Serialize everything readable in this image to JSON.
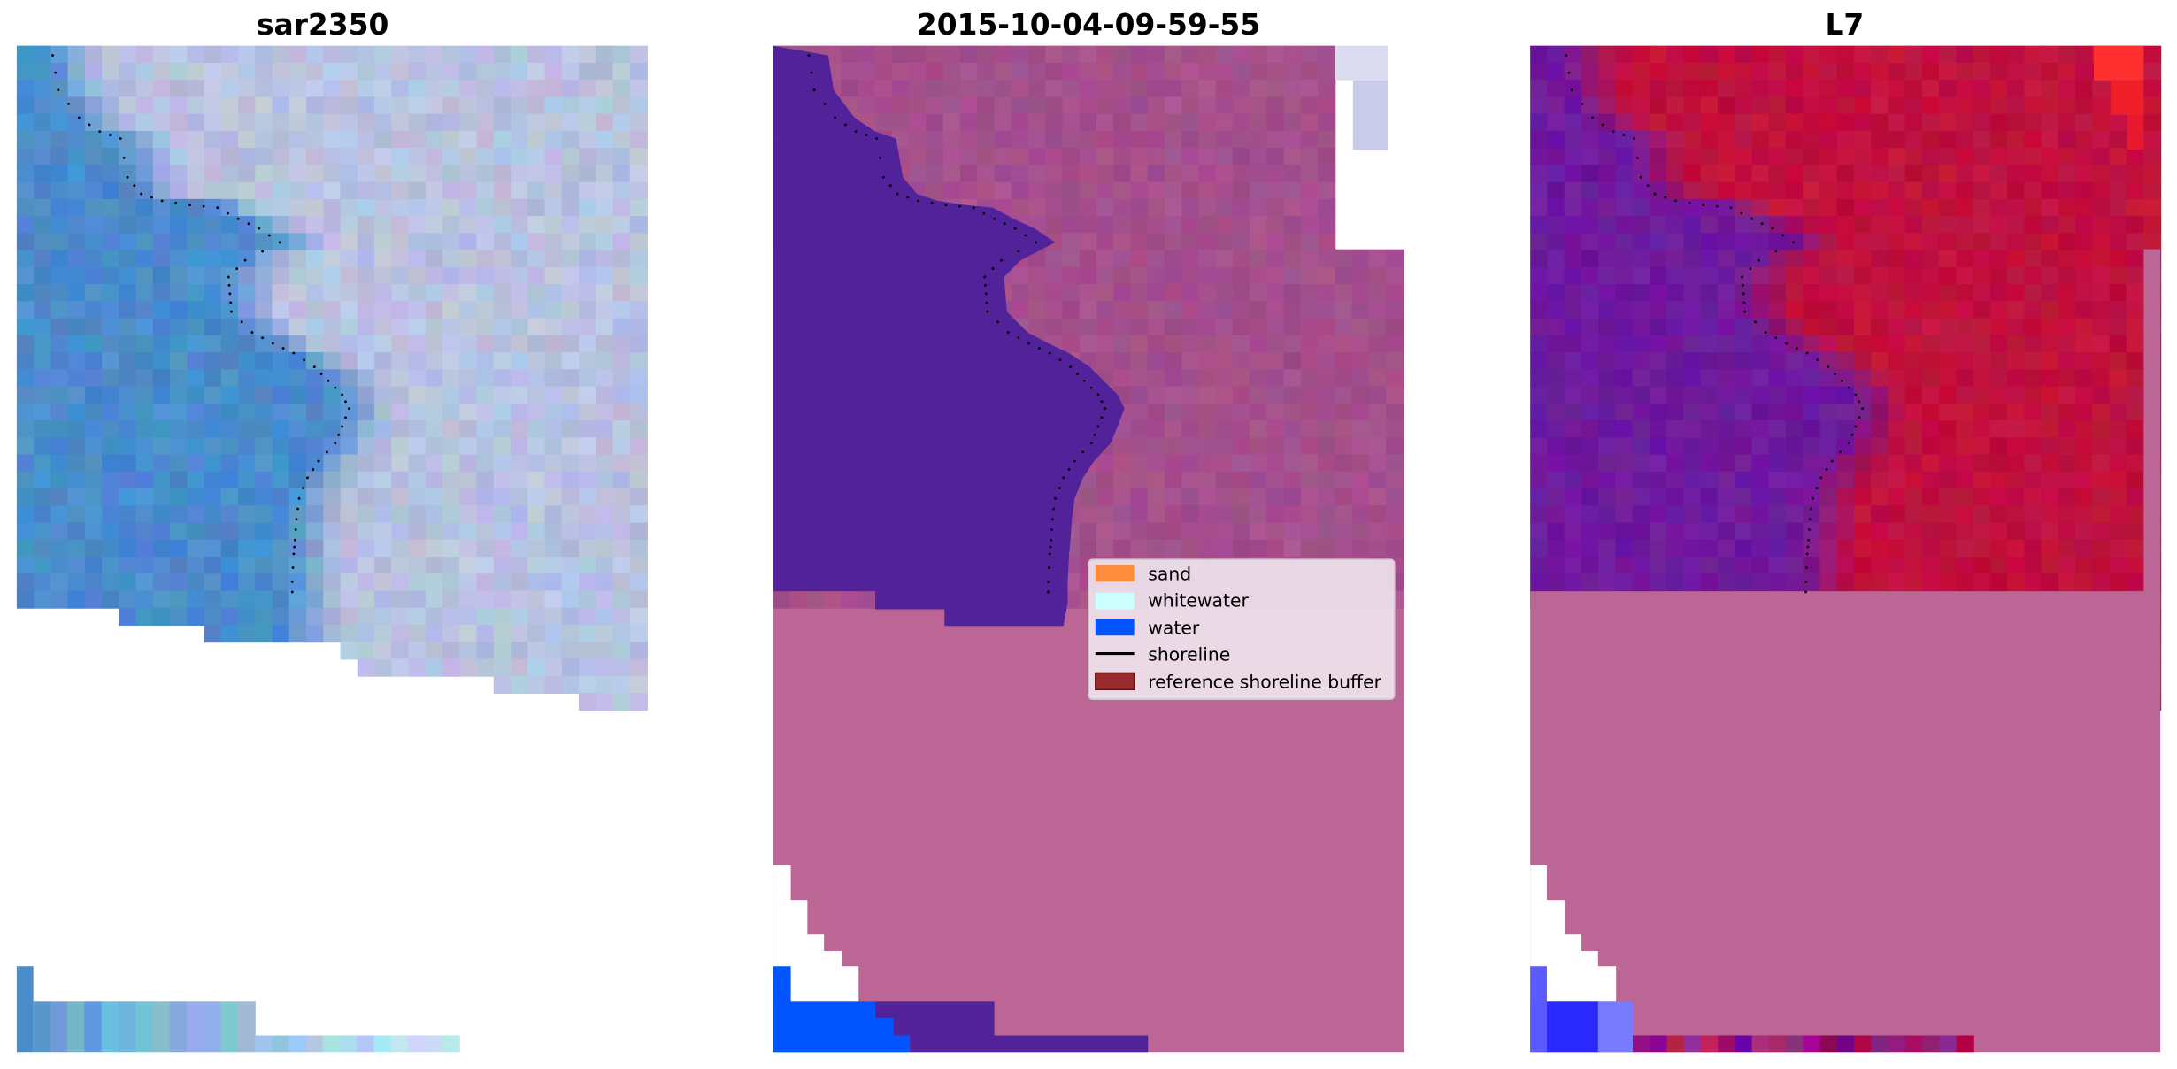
{
  "chart_data": [
    {
      "type": "image",
      "title": "sar2350",
      "grid": false,
      "axes": "off"
    },
    {
      "type": "image",
      "title": "2015-10-04-09-59-55",
      "grid": false,
      "axes": "off",
      "legend": {
        "placement": "center-right",
        "entries": [
          {
            "label": "sand",
            "color": "#ff8c3c",
            "kind": "patch"
          },
          {
            "label": "whitewater",
            "color": "#ccffff",
            "kind": "patch"
          },
          {
            "label": "water",
            "color": "#0055ff",
            "kind": "patch"
          },
          {
            "label": "shoreline",
            "color": "#000000",
            "kind": "line"
          },
          {
            "label": "reference shoreline buffer",
            "color": "#992a2e",
            "kind": "patch"
          }
        ]
      }
    },
    {
      "type": "image",
      "title": "L7",
      "grid": false,
      "axes": "off"
    }
  ],
  "colors": {
    "sar_water": "#4a8ccc",
    "sar_land": "#b8c2e0",
    "class_water": "#52229a",
    "class_land": "#a04d8a",
    "class_pink": "#bc6696",
    "l7_water": "#6e1a9e",
    "l7_land": "#c0113e"
  }
}
